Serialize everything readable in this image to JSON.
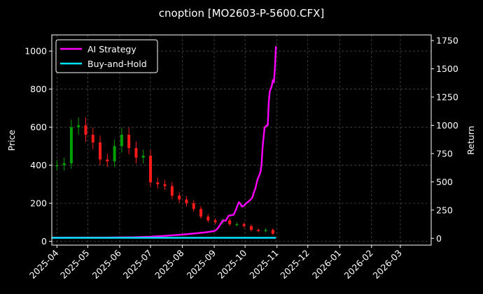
{
  "chart_data": {
    "type": "line",
    "title": "cnoption [MO2603-P-5600.CFX]",
    "xlabel": "",
    "ylabel": "Price",
    "ylabel_right": "Return",
    "grid": true,
    "legend_placement": "top-left",
    "x_ticks": [
      "2025-04",
      "2025-05",
      "2025-06",
      "2025-07",
      "2025-08",
      "2025-09",
      "2025-10",
      "2025-11",
      "2025-12",
      "2026-01",
      "2026-02",
      "2026-03"
    ],
    "x_range": [
      "2025-03-27",
      "2026-03-31"
    ],
    "y_ticks": [
      0,
      200,
      400,
      600,
      800,
      1000
    ],
    "ylim": [
      -20,
      1085
    ],
    "y2_ticks": [
      0,
      250,
      500,
      750,
      1000,
      1250,
      1500,
      1750
    ],
    "y2lim": [
      -60,
      1800
    ],
    "colors": {
      "ai_strategy": "#ff00ff",
      "buy_and_hold": "#00e5ff",
      "candle_up": "#00a000",
      "candle_down": "#ff1a1a",
      "grid": "#555555"
    },
    "series": [
      {
        "name": "AI Strategy",
        "axis": "right",
        "x": [
          "2025-03-27",
          "2025-04-15",
          "2025-05-15",
          "2025-06-15",
          "2025-07-01",
          "2025-07-15",
          "2025-08-01",
          "2025-08-15",
          "2025-08-25",
          "2025-09-01",
          "2025-09-03",
          "2025-09-05",
          "2025-09-08",
          "2025-09-10",
          "2025-09-12",
          "2025-09-15",
          "2025-09-18",
          "2025-09-20",
          "2025-09-22",
          "2025-09-24",
          "2025-09-25",
          "2025-09-26",
          "2025-09-28",
          "2025-09-30",
          "2025-10-02",
          "2025-10-05",
          "2025-10-08",
          "2025-10-10",
          "2025-10-11",
          "2025-10-13",
          "2025-10-14",
          "2025-10-16",
          "2025-10-17",
          "2025-10-18",
          "2025-10-19",
          "2025-10-20",
          "2025-10-22",
          "2025-10-23",
          "2025-10-24",
          "2025-10-25",
          "2025-10-27",
          "2025-10-28",
          "2025-10-29",
          "2025-10-30",
          "2025-10-31"
        ],
        "values": [
          5,
          6,
          7,
          10,
          15,
          22,
          33,
          45,
          55,
          65,
          75,
          95,
          140,
          160,
          155,
          200,
          205,
          210,
          250,
          300,
          320,
          310,
          280,
          290,
          310,
          330,
          360,
          420,
          440,
          520,
          540,
          590,
          650,
          800,
          900,
          980,
          1000,
          1000,
          1200,
          1300,
          1350,
          1400,
          1380,
          1500,
          1700
        ]
      },
      {
        "name": "Buy-and-Hold",
        "axis": "right",
        "x": [
          "2025-03-27",
          "2025-10-31"
        ],
        "values": [
          5,
          5
        ]
      }
    ],
    "candlesticks_summary": {
      "x": [
        "2025-04-01",
        "2025-04-08",
        "2025-04-15",
        "2025-04-22",
        "2025-04-29",
        "2025-05-06",
        "2025-05-13",
        "2025-05-20",
        "2025-05-27",
        "2025-06-03",
        "2025-06-10",
        "2025-06-17",
        "2025-06-24",
        "2025-07-01",
        "2025-07-08",
        "2025-07-15",
        "2025-07-22",
        "2025-07-29",
        "2025-08-05",
        "2025-08-12",
        "2025-08-19",
        "2025-08-26",
        "2025-09-02",
        "2025-09-09",
        "2025-09-16",
        "2025-09-23",
        "2025-09-30",
        "2025-10-07",
        "2025-10-14",
        "2025-10-21",
        "2025-10-28"
      ],
      "close": [
        400,
        410,
        600,
        610,
        560,
        520,
        430,
        420,
        500,
        560,
        490,
        440,
        450,
        310,
        300,
        290,
        240,
        220,
        200,
        170,
        130,
        110,
        100,
        110,
        90,
        90,
        80,
        60,
        55,
        60,
        40
      ]
    }
  }
}
